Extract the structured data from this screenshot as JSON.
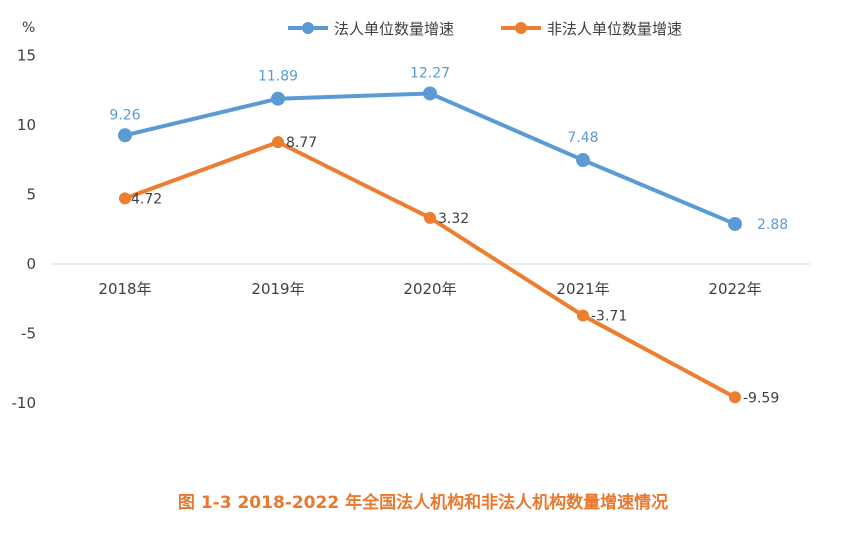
{
  "caption": "图 1-3    2018-2022 年全国法人机构和非法人机构数量增速情况",
  "chart_data": {
    "type": "line",
    "ylabel": "%",
    "ylim": [
      -10,
      15
    ],
    "yticks": [
      15,
      10,
      5,
      0,
      -5,
      -10
    ],
    "categories": [
      "2018年",
      "2019年",
      "2020年",
      "2021年",
      "2022年"
    ],
    "grid": false,
    "legend": "top",
    "series": [
      {
        "name": "法人单位数量增速",
        "color": "#5b9bd5",
        "values": [
          9.26,
          11.89,
          12.27,
          7.48,
          2.88
        ],
        "labels": [
          "9.26",
          "11.89",
          "12.27",
          "7.48",
          "2.88"
        ]
      },
      {
        "name": "非法人单位数量增速",
        "color": "#ed7d31",
        "values": [
          4.72,
          8.77,
          3.32,
          -3.71,
          -9.59
        ],
        "labels": [
          "4.72",
          "8.77",
          "3.32",
          "-3.71",
          "-9.59"
        ]
      }
    ]
  }
}
